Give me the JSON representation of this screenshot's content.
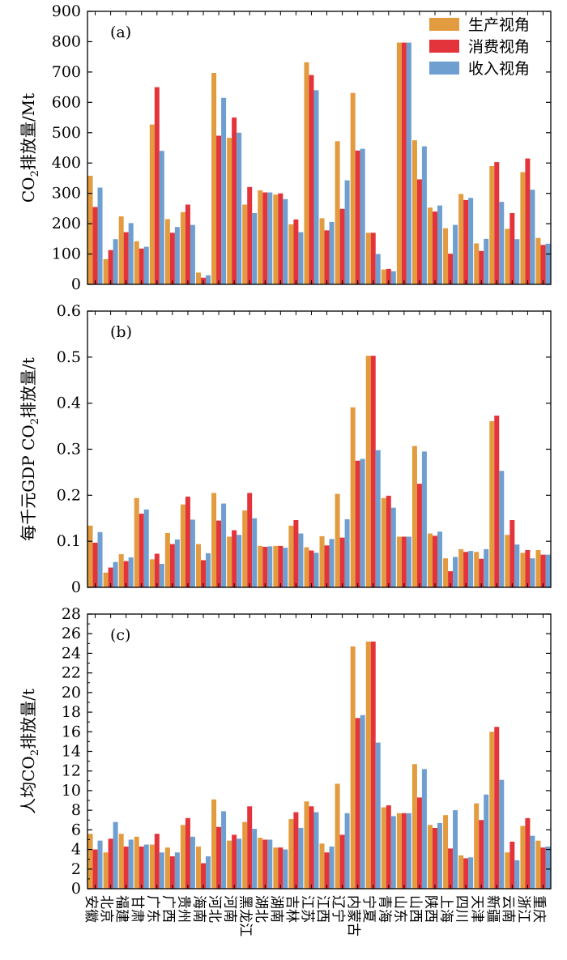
{
  "chart_data": [
    {
      "type": "bar",
      "panel_label": "(a)",
      "ylabel_parts": [
        "CO",
        "2",
        "排放量/Mt"
      ],
      "ylim": [
        0,
        900
      ],
      "yticks": [
        0,
        100,
        200,
        300,
        400,
        500,
        600,
        700,
        800,
        900
      ],
      "legend_position": "top-right",
      "series": [
        {
          "name": "生产视角",
          "color": "#E39B3F",
          "values": [
            358,
            83,
            224,
            142,
            527,
            215,
            238,
            39,
            697,
            483,
            263,
            310,
            296,
            198,
            732,
            218,
            472,
            631,
            170,
            49,
            797,
            475,
            253,
            185,
            298,
            135,
            390,
            183,
            370,
            153
          ]
        },
        {
          "name": "消费视角",
          "color": "#E4343B",
          "values": [
            255,
            113,
            172,
            118,
            650,
            170,
            263,
            22,
            490,
            550,
            321,
            303,
            300,
            214,
            690,
            178,
            249,
            441,
            170,
            51,
            797,
            346,
            240,
            101,
            278,
            110,
            403,
            235,
            415,
            130
          ]
        },
        {
          "name": "收入视角",
          "color": "#6E9FD0",
          "values": [
            319,
            149,
            202,
            124,
            440,
            189,
            196,
            30,
            615,
            500,
            235,
            303,
            281,
            172,
            640,
            206,
            343,
            447,
            100,
            43,
            797,
            455,
            260,
            196,
            285,
            150,
            272,
            149,
            312,
            134
          ]
        }
      ]
    },
    {
      "type": "bar",
      "panel_label": "(b)",
      "ylabel_parts": [
        "每千元GDP CO",
        "2",
        "排放量/t"
      ],
      "ylim": [
        0,
        0.6
      ],
      "yticks": [
        "0",
        "0.1",
        "0.2",
        "0.3",
        "0.4",
        "0.5",
        "0.6"
      ],
      "series": [
        {
          "name": "生产视角",
          "color": "#E39B3F",
          "values": [
            0.134,
            0.032,
            0.072,
            0.194,
            0.061,
            0.118,
            0.18,
            0.094,
            0.205,
            0.11,
            0.167,
            0.09,
            0.09,
            0.134,
            0.087,
            0.111,
            0.203,
            0.391,
            0.503,
            0.194,
            0.11,
            0.307,
            0.117,
            0.063,
            0.083,
            0.077,
            0.361,
            0.114,
            0.075,
            0.081
          ]
        },
        {
          "name": "消费视角",
          "color": "#E4343B",
          "values": [
            0.097,
            0.043,
            0.057,
            0.16,
            0.073,
            0.094,
            0.197,
            0.059,
            0.145,
            0.124,
            0.205,
            0.088,
            0.09,
            0.146,
            0.08,
            0.091,
            0.108,
            0.275,
            0.503,
            0.199,
            0.11,
            0.225,
            0.112,
            0.035,
            0.077,
            0.062,
            0.373,
            0.146,
            0.081,
            0.071
          ]
        },
        {
          "name": "收入视角",
          "color": "#6E9FD0",
          "values": [
            0.12,
            0.055,
            0.065,
            0.169,
            0.051,
            0.104,
            0.147,
            0.074,
            0.182,
            0.114,
            0.15,
            0.089,
            0.086,
            0.117,
            0.075,
            0.105,
            0.148,
            0.279,
            0.298,
            0.173,
            0.11,
            0.295,
            0.121,
            0.066,
            0.079,
            0.083,
            0.253,
            0.093,
            0.063,
            0.071
          ]
        }
      ]
    },
    {
      "type": "bar",
      "panel_label": "(c)",
      "ylabel_parts": [
        "人均CO",
        "2",
        "排放量/t"
      ],
      "ylim": [
        0,
        28
      ],
      "yticks": [
        0,
        2,
        4,
        6,
        8,
        10,
        12,
        14,
        16,
        18,
        20,
        22,
        24,
        26,
        28
      ],
      "series": [
        {
          "name": "生产视角",
          "color": "#E39B3F",
          "values": [
            5.6,
            3.7,
            5.6,
            5.3,
            4.5,
            4.2,
            6.5,
            4.3,
            9.1,
            4.9,
            6.8,
            5.2,
            4.2,
            7.1,
            8.9,
            4.6,
            10.7,
            24.7,
            25.2,
            8.3,
            7.7,
            12.7,
            6.5,
            7.5,
            3.4,
            8.7,
            16.0,
            3.7,
            6.4,
            4.9
          ]
        },
        {
          "name": "消费视角",
          "color": "#E4343B",
          "values": [
            4.0,
            5.1,
            4.3,
            4.3,
            5.6,
            3.3,
            7.2,
            2.6,
            6.3,
            5.5,
            8.4,
            5.0,
            4.2,
            7.8,
            8.4,
            3.7,
            5.5,
            17.4,
            25.2,
            8.5,
            7.7,
            9.3,
            6.2,
            4.1,
            3.1,
            7.0,
            16.5,
            4.8,
            7.2,
            4.2
          ]
        },
        {
          "name": "收入视角",
          "color": "#6E9FD0",
          "values": [
            4.9,
            6.8,
            5.0,
            4.5,
            3.7,
            3.7,
            5.3,
            3.3,
            7.9,
            5.1,
            6.1,
            5.0,
            4.0,
            6.2,
            7.8,
            4.3,
            7.7,
            17.7,
            14.9,
            7.4,
            7.7,
            12.2,
            6.7,
            8.0,
            3.2,
            9.6,
            11.1,
            2.9,
            5.4,
            4.3
          ]
        }
      ],
      "categories": [
        "安徽",
        "北京",
        "福建",
        "甘肃",
        "广东",
        "广西",
        "贵州",
        "海南",
        "河北",
        "河南",
        "黑龙江",
        "湖北",
        "湖南",
        "吉林",
        "江苏",
        "江西",
        "辽宁",
        "内蒙古",
        "宁夏",
        "青海",
        "山东",
        "山西",
        "陕西",
        "上海",
        "四川",
        "天津",
        "新疆",
        "云南",
        "浙江",
        "重庆"
      ]
    }
  ]
}
